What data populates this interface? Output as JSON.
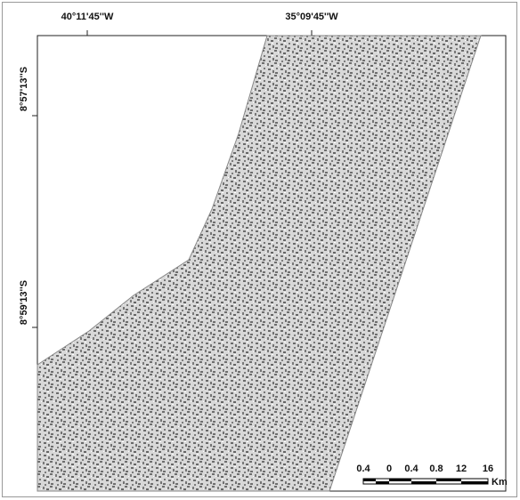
{
  "map": {
    "longitude_labels": [
      "40°11'45''W",
      "35°09'45''W"
    ],
    "latitude_labels": [
      "8°57'13''S",
      "8°59'13''S"
    ],
    "scale_bar": {
      "labels": [
        "0.4",
        "0",
        "0.4",
        "0.8",
        "12",
        "16"
      ],
      "unit": "Km"
    }
  }
}
